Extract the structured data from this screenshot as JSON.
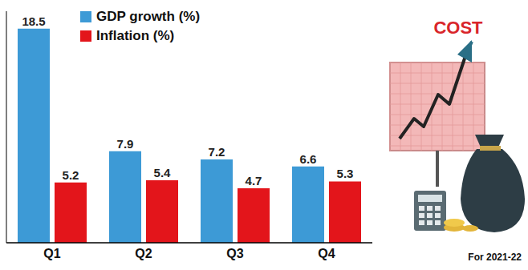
{
  "chart_data": {
    "type": "bar",
    "categories": [
      "Q1",
      "Q2",
      "Q3",
      "Q4"
    ],
    "series": [
      {
        "name": "GDP growth (%)",
        "color": "#3d9ad6",
        "values": [
          18.5,
          7.9,
          7.2,
          6.6
        ]
      },
      {
        "name": "Inflation (%)",
        "color": "#e3151b",
        "values": [
          5.2,
          5.4,
          4.7,
          5.3
        ]
      }
    ],
    "ylim": [
      0,
      20
    ],
    "yticks": [],
    "data_labels": true,
    "tick_labels": "x",
    "legend": "upper left",
    "annotations": [
      "COST",
      "For 2021-22"
    ]
  }
}
